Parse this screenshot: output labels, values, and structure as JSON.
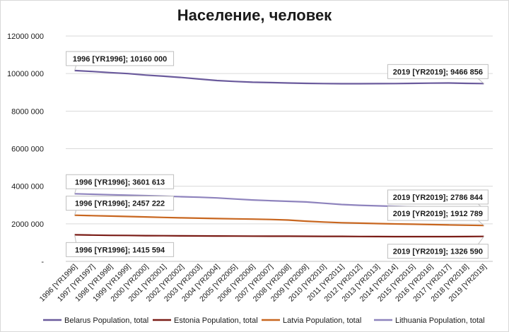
{
  "title": "Население, человек",
  "chart_data": {
    "type": "line",
    "title": "Население, человек",
    "xlabel": "",
    "ylabel": "",
    "ylim": [
      0,
      12000000
    ],
    "y_ticks": [
      {
        "value": 12000000,
        "label": "12000 000"
      },
      {
        "value": 10000000,
        "label": "10000 000"
      },
      {
        "value": 8000000,
        "label": "8000 000"
      },
      {
        "value": 6000000,
        "label": "6000 000"
      },
      {
        "value": 4000000,
        "label": "4000 000"
      },
      {
        "value": 2000000,
        "label": "2000 000"
      },
      {
        "value": 0,
        "label": "-"
      }
    ],
    "grid": true,
    "legend_position": "bottom",
    "categories": [
      "1996 [YR1996]",
      "1997 [YR1997]",
      "1998 [YR1998]",
      "1999 [YR1999]",
      "2000 [YR2000]",
      "2001 [YR2001]",
      "2002 [YR2002]",
      "2003 [YR2003]",
      "2004 [YR2004]",
      "2005 [YR2005]",
      "2006 [YR2006]",
      "2007 [YR2007]",
      "2008 [YR2008]",
      "2009 [YR2009]",
      "2010 [YR2010]",
      "2011 [YR2011]",
      "2012 [YR2012]",
      "2013 [YR2013]",
      "2014 [YR2014]",
      "2015 [YR2015]",
      "2016 [YR2016]",
      "2017 [YR2017]",
      "2018 [YR2018]",
      "2019 [YR2019]"
    ],
    "series": [
      {
        "name": "Belarus Population, total",
        "color": "#6a5a9c",
        "values": [
          10160000,
          10110000,
          10050000,
          10000000,
          9920000,
          9860000,
          9790000,
          9710000,
          9630000,
          9580000,
          9540000,
          9520000,
          9500000,
          9480000,
          9470000,
          9460000,
          9460000,
          9465000,
          9470000,
          9480000,
          9490000,
          9500000,
          9480000,
          9466856
        ]
      },
      {
        "name": "Estonia Population, total",
        "color": "#7a1c16",
        "values": [
          1415594,
          1399000,
          1386000,
          1380000,
          1370000,
          1364000,
          1359000,
          1354000,
          1350000,
          1346000,
          1343000,
          1341000,
          1338000,
          1336000,
          1333000,
          1330000,
          1325000,
          1320000,
          1315000,
          1315000,
          1316000,
          1317000,
          1321000,
          1326590
        ]
      },
      {
        "name": "Latvia Population, total",
        "color": "#c8661f",
        "values": [
          2457222,
          2432000,
          2410000,
          2390000,
          2368000,
          2340000,
          2317000,
          2299000,
          2280000,
          2263000,
          2249000,
          2232000,
          2199000,
          2141000,
          2097000,
          2059000,
          2034000,
          2012000,
          1994000,
          1978000,
          1960000,
          1942000,
          1927000,
          1912789
        ]
      },
      {
        "name": "Lithuania Population, total",
        "color": "#8e83bd",
        "values": [
          3601613,
          3575000,
          3549000,
          3524000,
          3499000,
          3471000,
          3443000,
          3415000,
          3378000,
          3322000,
          3270000,
          3231000,
          3198000,
          3163000,
          3097000,
          3028000,
          2988000,
          2958000,
          2932000,
          2905000,
          2868000,
          2828000,
          2802000,
          2786844
        ]
      }
    ],
    "data_labels": [
      {
        "series": 0,
        "point": 0,
        "text": "1996 [YR1996];  10160 000"
      },
      {
        "series": 0,
        "point": 23,
        "text": "2019 [YR2019];  9466 856"
      },
      {
        "series": 3,
        "point": 0,
        "text": "1996 [YR1996];  3601 613"
      },
      {
        "series": 3,
        "point": 23,
        "text": "2019 [YR2019];  2786 844"
      },
      {
        "series": 2,
        "point": 0,
        "text": "1996 [YR1996];  2457 222"
      },
      {
        "series": 2,
        "point": 23,
        "text": "2019 [YR2019];  1912 789"
      },
      {
        "series": 1,
        "point": 0,
        "text": "1996 [YR1996];  1415 594"
      },
      {
        "series": 1,
        "point": 23,
        "text": "2019 [YR2019];  1326 590"
      }
    ]
  }
}
